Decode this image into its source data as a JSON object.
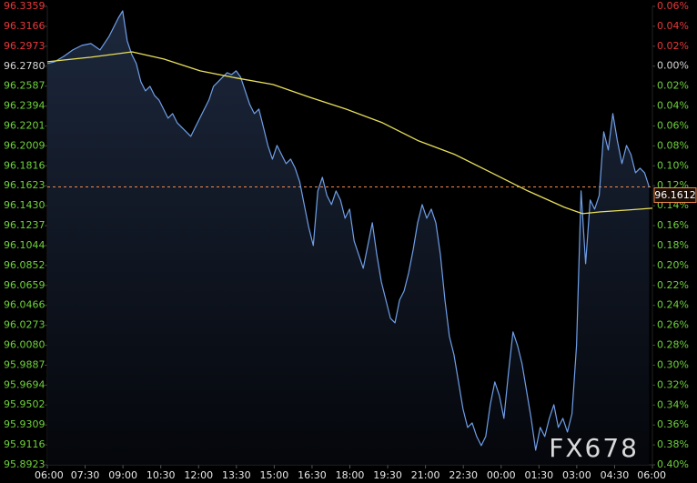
{
  "chart_data": {
    "type": "line",
    "xlim": [
      0,
      24
    ],
    "ylim": [
      95.8923,
      96.3359
    ],
    "y2lim": [
      -0.4,
      0.06
    ],
    "xticks": [
      {
        "value": 0,
        "label": "06:00"
      },
      {
        "value": 1.5,
        "label": "07:30"
      },
      {
        "value": 3,
        "label": "09:00"
      },
      {
        "value": 4.5,
        "label": "10:30"
      },
      {
        "value": 6,
        "label": "12:00"
      },
      {
        "value": 7.5,
        "label": "13:30"
      },
      {
        "value": 9,
        "label": "15:00"
      },
      {
        "value": 10.5,
        "label": "16:30"
      },
      {
        "value": 12,
        "label": "18:00"
      },
      {
        "value": 13.5,
        "label": "19:30"
      },
      {
        "value": 15,
        "label": "21:00"
      },
      {
        "value": 16.5,
        "label": "22:30"
      },
      {
        "value": 18,
        "label": "00:00"
      },
      {
        "value": 19.5,
        "label": "01:30"
      },
      {
        "value": 21,
        "label": "03:00"
      },
      {
        "value": 22.5,
        "label": "04:30"
      },
      {
        "value": 24,
        "label": "06:00"
      }
    ],
    "yticks": [
      96.3359,
      96.3166,
      96.2973,
      {
        "value": 96.278,
        "label": "96.2780"
      },
      96.2587,
      96.2394,
      96.2201,
      96.2009,
      96.1816,
      96.1623,
      {
        "value": 96.143,
        "label": "96.1430"
      },
      96.1237,
      96.1044,
      96.0852,
      96.0659,
      96.0466,
      96.0273,
      {
        "value": 96.008,
        "label": "96.0080"
      },
      95.9887,
      95.9694,
      95.9502,
      95.9309,
      95.9116,
      95.8923
    ],
    "y2ticks": [
      {
        "value": 0.06,
        "label": "0.06%"
      },
      {
        "value": 0.04,
        "label": "0.04%"
      },
      {
        "value": 0.02,
        "label": "0.02%"
      },
      {
        "value": 0,
        "label": "0.00%"
      },
      {
        "value": -0.02,
        "label": "0.02%"
      },
      {
        "value": -0.04,
        "label": "0.04%"
      },
      {
        "value": -0.06,
        "label": "0.06%"
      },
      {
        "value": -0.08,
        "label": "0.08%"
      },
      {
        "value": -0.1,
        "label": "0.10%"
      },
      {
        "value": -0.12,
        "label": "0.12%"
      },
      {
        "value": -0.14,
        "label": "0.14%"
      },
      {
        "value": -0.16,
        "label": "0.16%"
      },
      {
        "value": -0.18,
        "label": "0.18%"
      },
      {
        "value": -0.2,
        "label": "0.20%"
      },
      {
        "value": -0.22,
        "label": "0.22%"
      },
      {
        "value": -0.24,
        "label": "0.24%"
      },
      {
        "value": -0.26,
        "label": "0.26%"
      },
      {
        "value": -0.28,
        "label": "0.28%"
      },
      {
        "value": -0.3,
        "label": "0.30%"
      },
      {
        "value": -0.32,
        "label": "0.32%"
      },
      {
        "value": -0.34,
        "label": "0.34%"
      },
      {
        "value": -0.36,
        "label": "0.36%"
      },
      {
        "value": -0.38,
        "label": "0.38%"
      },
      {
        "value": -0.4,
        "label": "0.40%"
      }
    ],
    "rise_color": "#e8383a",
    "fall_color": "#6fd23c",
    "neutral_color": "#d8d8d8",
    "grid": false,
    "last_price": 96.1612,
    "last_price_color": "#f08a50",
    "watermark": "FX678",
    "series": [
      {
        "color": "#6f9fe8",
        "x": [
          0,
          0.29,
          0.65,
          1.01,
          1.37,
          1.73,
          2.09,
          2.45,
          2.63,
          2.81,
          2.99,
          3.17,
          3.35,
          3.53,
          3.71,
          3.89,
          4.07,
          4.25,
          4.43,
          4.61,
          4.79,
          4.97,
          5.15,
          5.33,
          5.51,
          5.69,
          5.87,
          6.05,
          6.23,
          6.41,
          6.59,
          6.77,
          6.95,
          7.13,
          7.31,
          7.49,
          7.67,
          7.85,
          8.03,
          8.21,
          8.39,
          8.57,
          8.75,
          8.93,
          9.11,
          9.29,
          9.47,
          9.65,
          9.83,
          10.01,
          10.19,
          10.37,
          10.55,
          10.73,
          10.91,
          11.09,
          11.27,
          11.45,
          11.63,
          11.81,
          11.99,
          12.17,
          12.35,
          12.53,
          12.71,
          12.89,
          13.07,
          13.25,
          13.43,
          13.61,
          13.79,
          13.97,
          14.15,
          14.33,
          14.51,
          14.69,
          14.87,
          15.05,
          15.23,
          15.41,
          15.59,
          15.77,
          15.95,
          16.13,
          16.31,
          16.49,
          16.67,
          16.85,
          17.03,
          17.21,
          17.39,
          17.57,
          17.75,
          17.93,
          18.11,
          18.29,
          18.47,
          18.65,
          18.83,
          19.01,
          19.19,
          19.37,
          19.55,
          19.73,
          19.91,
          20.09,
          20.27,
          20.45,
          20.63,
          20.81,
          20.99,
          21.17,
          21.35,
          21.53,
          21.71,
          21.89,
          22.07,
          22.25,
          22.43,
          22.61,
          22.79,
          22.97,
          23.15,
          23.33,
          23.51,
          23.69,
          23.87
        ],
        "values": [
          96.2805,
          96.2823,
          96.2875,
          96.2937,
          96.2981,
          96.2999,
          96.2937,
          96.3069,
          96.3157,
          96.3245,
          96.3315,
          96.3025,
          96.2893,
          96.2805,
          96.2629,
          96.2541,
          96.2585,
          96.2497,
          96.2453,
          96.2365,
          96.2277,
          96.2321,
          96.2233,
          96.2189,
          96.2145,
          96.2101,
          96.2189,
          96.2277,
          96.2365,
          96.2453,
          96.2585,
          96.2629,
          96.2673,
          96.2717,
          96.2699,
          96.2735,
          96.2673,
          96.2541,
          96.2409,
          96.2321,
          96.2365,
          96.2189,
          96.2013,
          96.1881,
          96.2013,
          96.1925,
          96.1837,
          96.1881,
          96.1793,
          96.1661,
          96.1441,
          96.1221,
          96.1045,
          96.1573,
          96.1705,
          96.1529,
          96.1441,
          96.1573,
          96.1485,
          96.1309,
          96.1397,
          96.1089,
          96.0957,
          96.0825,
          96.1045,
          96.1265,
          96.0957,
          96.0693,
          96.0517,
          96.0341,
          96.0297,
          96.0517,
          96.0605,
          96.0781,
          96.1001,
          96.1265,
          96.1441,
          96.1309,
          96.1397,
          96.1265,
          96.0957,
          96.0517,
          96.0165,
          95.9989,
          95.9725,
          95.9461,
          95.9285,
          95.9329,
          95.9197,
          95.9109,
          95.9197,
          95.9505,
          95.9725,
          95.9593,
          95.9373,
          95.9813,
          96.0209,
          96.0077,
          95.9901,
          95.9637,
          95.9373,
          95.9065,
          95.9285,
          95.9197,
          95.9373,
          95.9505,
          95.9285,
          95.9373,
          95.9241,
          95.9417,
          96.0077,
          96.1573,
          96.0869,
          96.1485,
          96.1397,
          96.1529,
          96.2145,
          96.1969,
          96.2321,
          96.2057,
          96.1837,
          96.2013,
          96.1925,
          96.1749,
          96.1793,
          96.1749,
          96.1612
        ]
      },
      {
        "color": "#e8e05a",
        "x": [
          0,
          1.73,
          3.36,
          4.62,
          6.06,
          7.51,
          8.95,
          10.4,
          11.84,
          13.29,
          14.73,
          16.17,
          17.62,
          19.06,
          20.51,
          21.23,
          21.95,
          23.03,
          24
        ],
        "values": [
          96.2823,
          96.2867,
          96.2919,
          96.2849,
          96.2735,
          96.2665,
          96.2603,
          96.248,
          96.2365,
          96.2233,
          96.2057,
          96.1925,
          96.1749,
          96.1573,
          96.1415,
          96.1353,
          96.1371,
          96.1388,
          96.1406
        ]
      }
    ]
  }
}
